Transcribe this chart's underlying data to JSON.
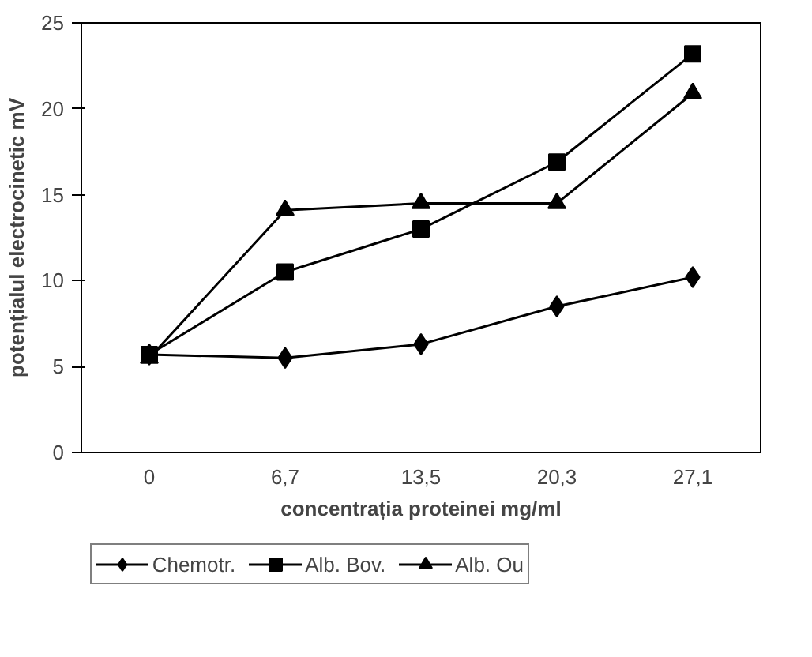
{
  "chart_data": {
    "type": "line",
    "xlabel": "concentrația proteinei mg/ml",
    "ylabel": "potențialul electrocinetic mV",
    "categories": [
      "0",
      "6,7",
      "13,5",
      "20,3",
      "27,1"
    ],
    "ylim": [
      0,
      25
    ],
    "yticks": [
      0,
      5,
      10,
      15,
      20,
      25
    ],
    "grid": false,
    "legend": "bottom",
    "line_style": "solid",
    "series": [
      {
        "name": "Chemotr.",
        "color": "#000000",
        "marker": "diamond",
        "values": [
          5.7,
          5.5,
          6.3,
          8.5,
          10.2
        ]
      },
      {
        "name": "Alb. Bov.",
        "color": "#000000",
        "marker": "square",
        "values": [
          5.7,
          10.5,
          13.0,
          16.9,
          23.2
        ]
      },
      {
        "name": "Alb. Ou",
        "color": "#000000",
        "marker": "triangle",
        "values": [
          5.5,
          14.1,
          14.5,
          14.5,
          20.9
        ]
      }
    ]
  }
}
